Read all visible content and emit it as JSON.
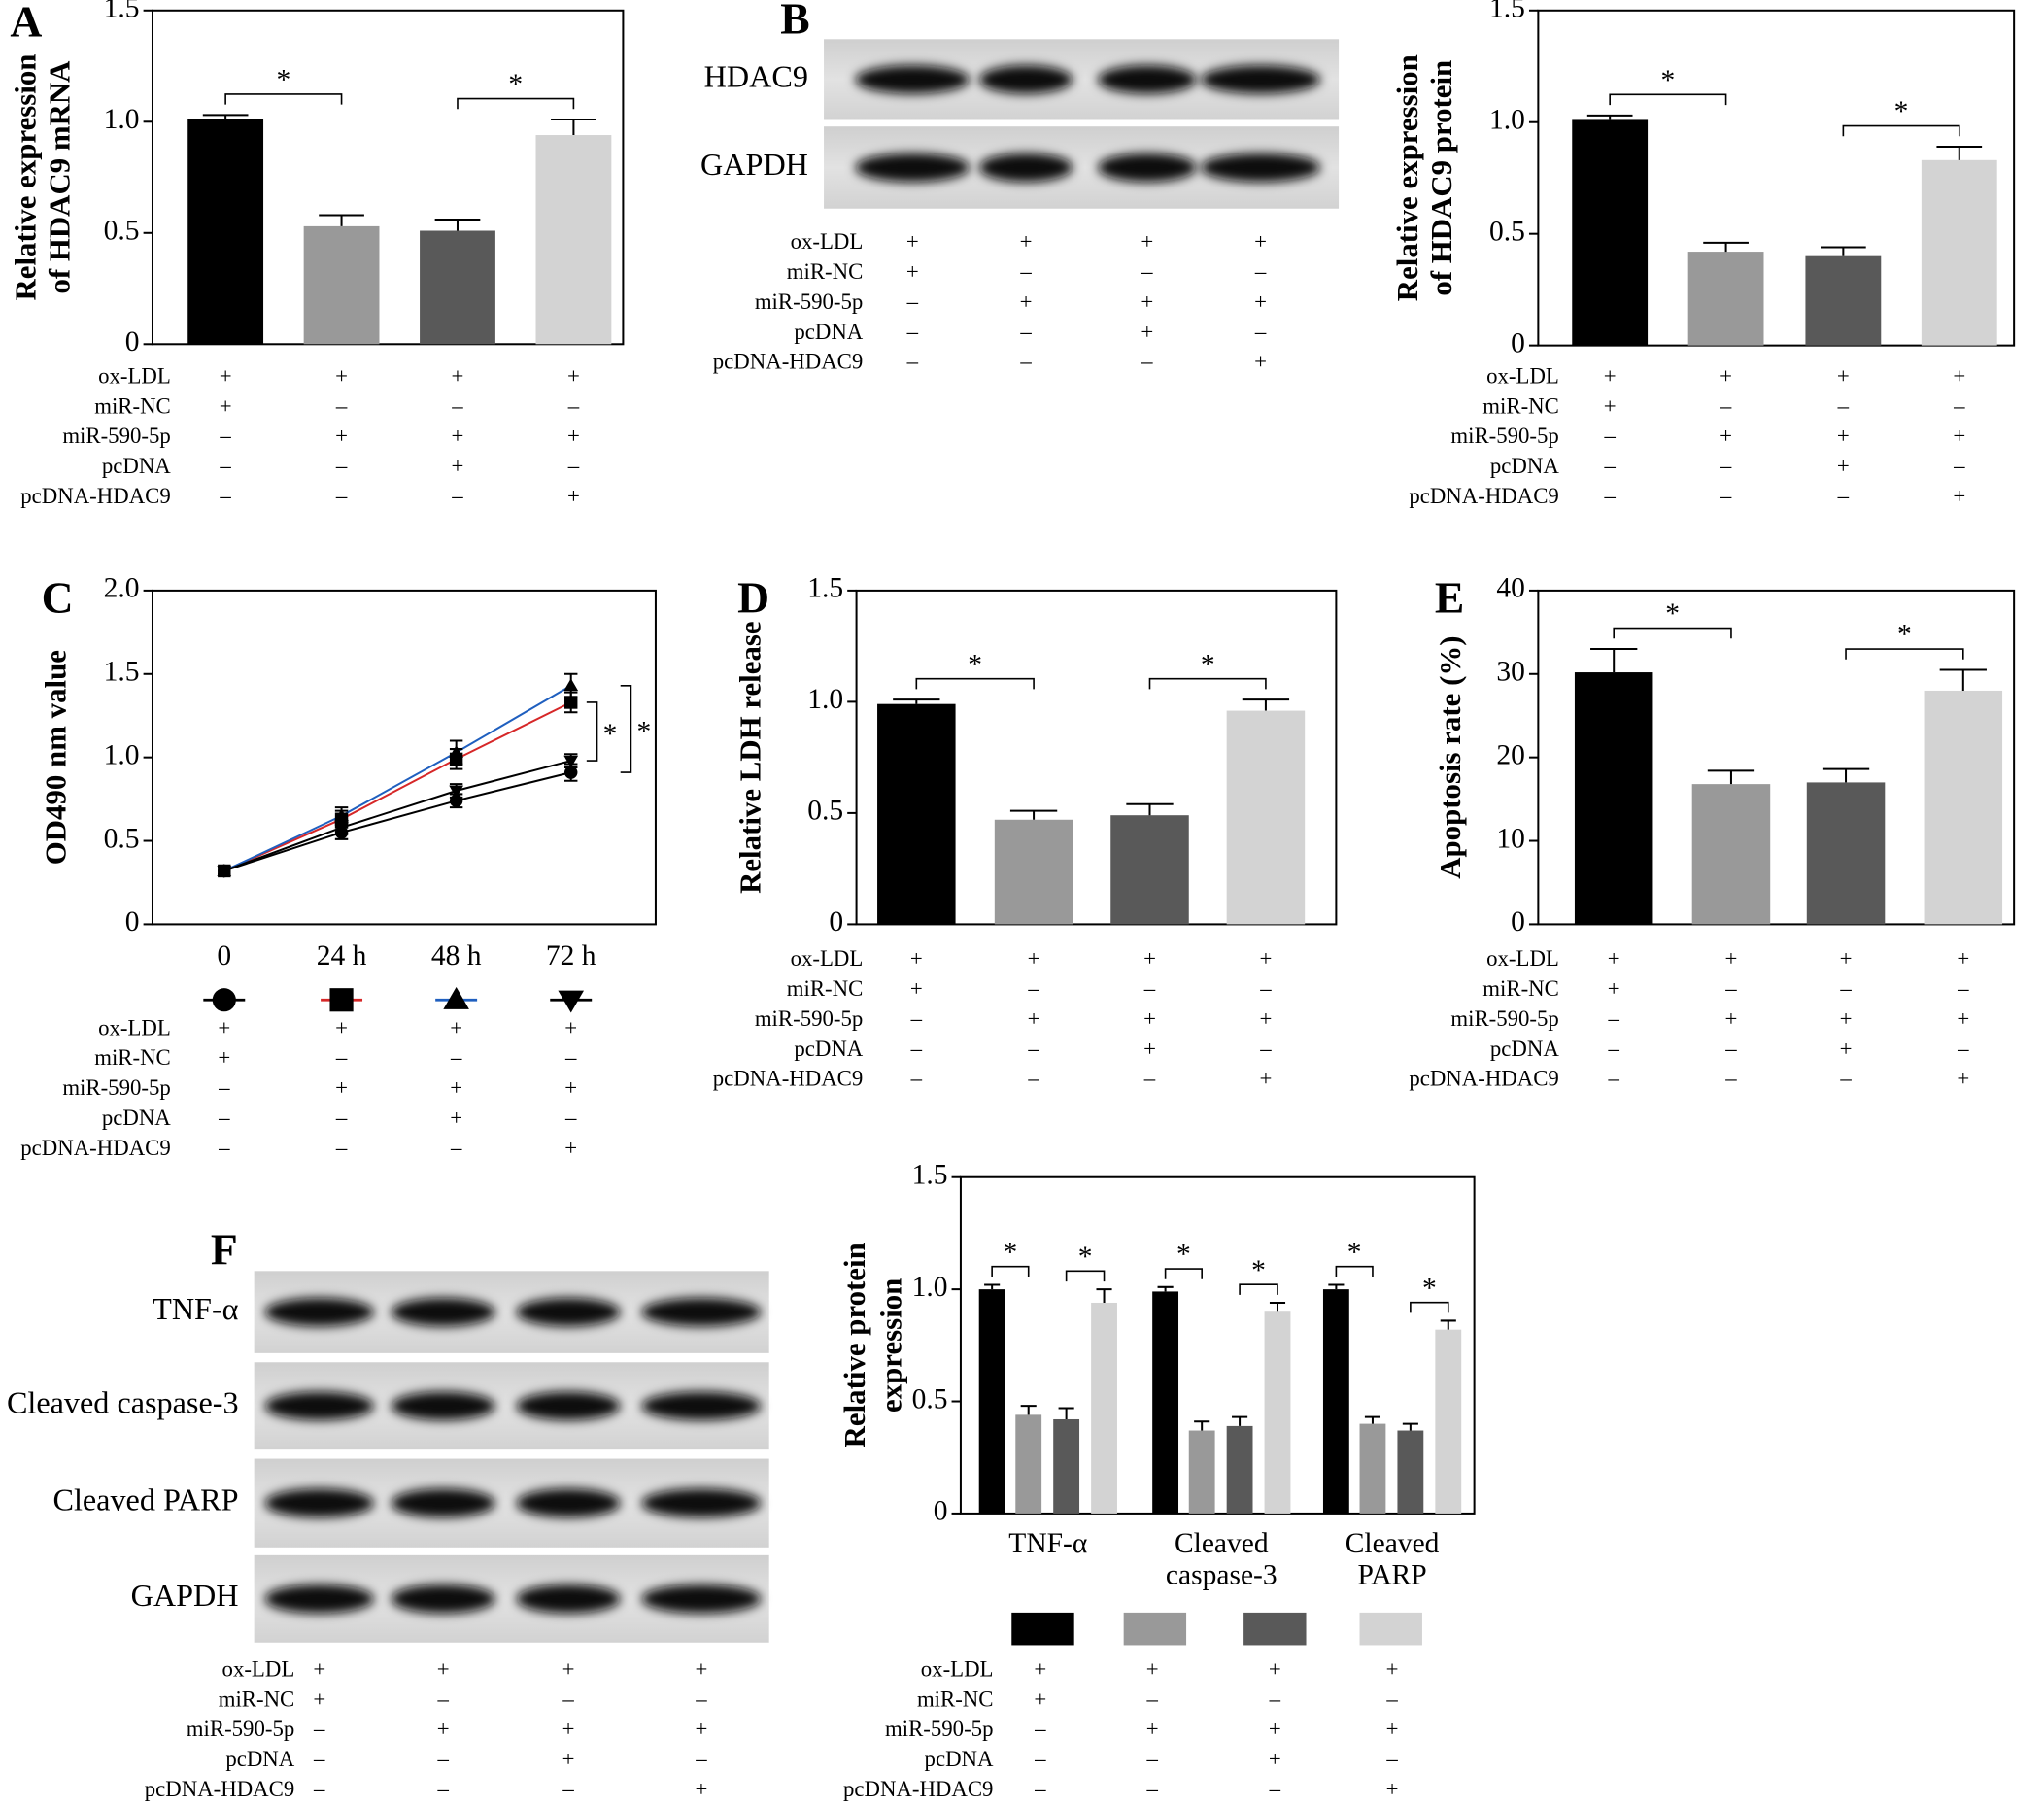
{
  "panel_labels": [
    "A",
    "B",
    "C",
    "D",
    "E",
    "F"
  ],
  "treatments": {
    "rows": [
      "ox-LDL",
      "miR-NC",
      "miR-590-5p",
      "pcDNA",
      "pcDNA-HDAC9"
    ],
    "signs": [
      [
        "+",
        "+",
        "+",
        "+"
      ],
      [
        "+",
        "–",
        "–",
        "–"
      ],
      [
        "–",
        "+",
        "+",
        "+"
      ],
      [
        "–",
        "–",
        "+",
        "–"
      ],
      [
        "–",
        "–",
        "–",
        "+"
      ]
    ]
  },
  "blots": [
    {
      "rows": [
        "HDAC9",
        "GAPDH"
      ]
    },
    {
      "rows": [
        "TNF-α",
        "Cleaved caspase-3",
        "Cleaved PARP",
        "GAPDH"
      ]
    }
  ],
  "chart_data": [
    {
      "type": "bar",
      "ylabel": [
        "Relative expression",
        "of HDAC9 mRNA"
      ],
      "values": [
        1.01,
        0.53,
        0.51,
        0.94
      ],
      "errors": [
        0.02,
        0.05,
        0.05,
        0.07
      ],
      "colors": [
        "#000000",
        "#999999",
        "#595959",
        "#d3d3d3"
      ],
      "ylim": [
        0,
        1.5
      ],
      "yticks": [
        0,
        0.5,
        {
          "value": 1,
          "label": "1.0"
        },
        1.5
      ],
      "significance": [
        {
          "label": "*",
          "between": [
            0,
            1
          ]
        },
        {
          "label": "*",
          "between": [
            2,
            3
          ]
        }
      ]
    },
    {
      "type": "bar",
      "ylabel": [
        "Relative expression",
        "of HDAC9 protein"
      ],
      "values": [
        1.01,
        0.42,
        0.4,
        0.83
      ],
      "errors": [
        0.02,
        0.04,
        0.04,
        0.06
      ],
      "colors": [
        "#000000",
        "#999999",
        "#595959",
        "#d3d3d3"
      ],
      "ylim": [
        0,
        1.5
      ],
      "yticks": [
        0,
        0.5,
        {
          "value": 1,
          "label": "1.0"
        },
        1.5
      ],
      "significance": [
        {
          "label": "*",
          "between": [
            0,
            1
          ]
        },
        {
          "label": "*",
          "between": [
            2,
            3
          ]
        }
      ]
    },
    {
      "type": "line",
      "ylabel": [
        "OD490 nm value"
      ],
      "categories": [
        "0",
        "24 h",
        "48 h",
        "72 h"
      ],
      "series": [
        {
          "marker": "circle",
          "color": "#000000",
          "values": [
            0.32,
            0.55,
            0.74,
            0.91
          ],
          "errors": [
            0.02,
            0.04,
            0.04,
            0.05
          ]
        },
        {
          "marker": "square",
          "color": "#d62728",
          "values": [
            0.32,
            0.63,
            0.99,
            1.33
          ],
          "errors": [
            0.02,
            0.05,
            0.06,
            0.06
          ]
        },
        {
          "marker": "triangle",
          "color": "#1f5fbf",
          "values": [
            0.32,
            0.65,
            1.03,
            1.43
          ],
          "errors": [
            0.02,
            0.05,
            0.07,
            0.07
          ]
        },
        {
          "marker": "triangle-down",
          "color": "#000000",
          "values": [
            0.32,
            0.58,
            0.8,
            0.98
          ],
          "errors": [
            0.02,
            0.04,
            0.04,
            0.04
          ]
        }
      ],
      "ylim": [
        0,
        2
      ],
      "yticks": [
        0,
        0.5,
        {
          "value": 1,
          "label": "1.0"
        },
        1.5,
        {
          "value": 2,
          "label": "2.0"
        }
      ],
      "significance": [
        {
          "label": "*",
          "series": [
            1,
            3
          ]
        },
        {
          "label": "*",
          "series": [
            2,
            0
          ]
        }
      ]
    },
    {
      "type": "bar",
      "ylabel": [
        "Relative LDH release"
      ],
      "values": [
        0.99,
        0.47,
        0.49,
        0.96
      ],
      "errors": [
        0.02,
        0.04,
        0.05,
        0.05
      ],
      "colors": [
        "#000000",
        "#999999",
        "#595959",
        "#d3d3d3"
      ],
      "ylim": [
        0,
        1.5
      ],
      "yticks": [
        0,
        0.5,
        {
          "value": 1,
          "label": "1.0"
        },
        1.5
      ],
      "significance": [
        {
          "label": "*",
          "between": [
            0,
            1
          ]
        },
        {
          "label": "*",
          "between": [
            2,
            3
          ]
        }
      ]
    },
    {
      "type": "bar",
      "ylabel": [
        "Apoptosis rate (%)"
      ],
      "values": [
        30.2,
        16.8,
        17,
        28
      ],
      "errors": [
        2.8,
        1.6,
        1.6,
        2.5
      ],
      "colors": [
        "#000000",
        "#999999",
        "#595959",
        "#d3d3d3"
      ],
      "ylim": [
        0,
        40
      ],
      "yticks": [
        0,
        10,
        20,
        30,
        40
      ],
      "significance": [
        {
          "label": "*",
          "between": [
            0,
            1
          ]
        },
        {
          "label": "*",
          "between": [
            2,
            3
          ]
        }
      ]
    },
    {
      "type": "grouped-bar",
      "ylabel": [
        "Relative protein",
        "expression"
      ],
      "categories": [
        [
          "TNF-α"
        ],
        [
          "Cleaved",
          "caspase-3"
        ],
        [
          "Cleaved",
          "PARP"
        ]
      ],
      "series": [
        {
          "color": "#000000",
          "values": [
            1,
            0.99,
            1
          ],
          "errors": [
            0.02,
            0.02,
            0.02
          ]
        },
        {
          "color": "#999999",
          "values": [
            0.44,
            0.37,
            0.4
          ],
          "errors": [
            0.04,
            0.04,
            0.03
          ]
        },
        {
          "color": "#595959",
          "values": [
            0.42,
            0.39,
            0.37
          ],
          "errors": [
            0.05,
            0.04,
            0.03
          ]
        },
        {
          "color": "#d3d3d3",
          "values": [
            0.94,
            0.9,
            0.82
          ],
          "errors": [
            0.06,
            0.04,
            0.04
          ]
        }
      ],
      "ylim": [
        0,
        1.5
      ],
      "yticks": [
        0,
        0.5,
        {
          "value": 1,
          "label": "1.0"
        },
        1.5
      ],
      "significance": [
        {
          "label": "*",
          "category": 0,
          "between": [
            0,
            1
          ]
        },
        {
          "label": "*",
          "category": 0,
          "between": [
            2,
            3
          ]
        },
        {
          "label": "*",
          "category": 1,
          "between": [
            0,
            1
          ]
        },
        {
          "label": "*",
          "category": 1,
          "between": [
            2,
            3
          ]
        },
        {
          "label": "*",
          "category": 2,
          "between": [
            0,
            1
          ]
        },
        {
          "label": "*",
          "category": 2,
          "between": [
            2,
            3
          ]
        }
      ]
    }
  ]
}
